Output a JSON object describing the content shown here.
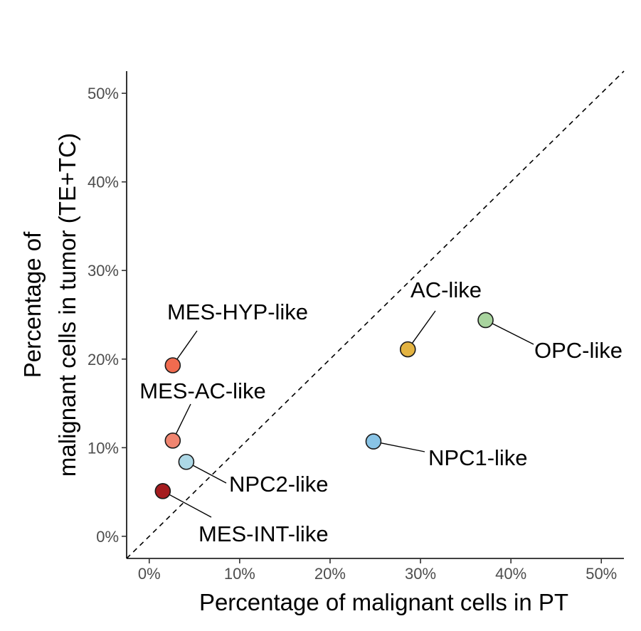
{
  "chart_data": {
    "type": "scatter",
    "title": "",
    "xlabel": "Percentage of malignant cells in PT",
    "ylabel_lines": [
      "Percentage of",
      "malignant cells in tumor (TE+TC)"
    ],
    "xlim": [
      -2.5,
      52.5
    ],
    "ylim": [
      -2.5,
      52.5
    ],
    "x_ticks": [
      0,
      10,
      20,
      30,
      40,
      50
    ],
    "y_ticks": [
      0,
      10,
      20,
      30,
      40,
      50
    ],
    "x_tick_labels": [
      "0%",
      "10%",
      "20%",
      "30%",
      "40%",
      "50%"
    ],
    "y_tick_labels": [
      "0%",
      "10%",
      "20%",
      "30%",
      "40%",
      "50%"
    ],
    "reference_line": "y = x (dashed)",
    "points": [
      {
        "name": "MES-HYP-like",
        "x": 2.6,
        "y": 19.3,
        "color": "#f06b4f"
      },
      {
        "name": "MES-AC-like",
        "x": 2.6,
        "y": 10.8,
        "color": "#f08570"
      },
      {
        "name": "NPC2-like",
        "x": 4.1,
        "y": 8.4,
        "color": "#add8e6"
      },
      {
        "name": "MES-INT-like",
        "x": 1.5,
        "y": 5.1,
        "color": "#a51c1f"
      },
      {
        "name": "AC-like",
        "x": 28.6,
        "y": 21.1,
        "color": "#e3b341"
      },
      {
        "name": "OPC-like",
        "x": 37.2,
        "y": 24.4,
        "color": "#a8d49e"
      },
      {
        "name": "NPC1-like",
        "x": 24.8,
        "y": 10.7,
        "color": "#89c4e6"
      }
    ]
  }
}
